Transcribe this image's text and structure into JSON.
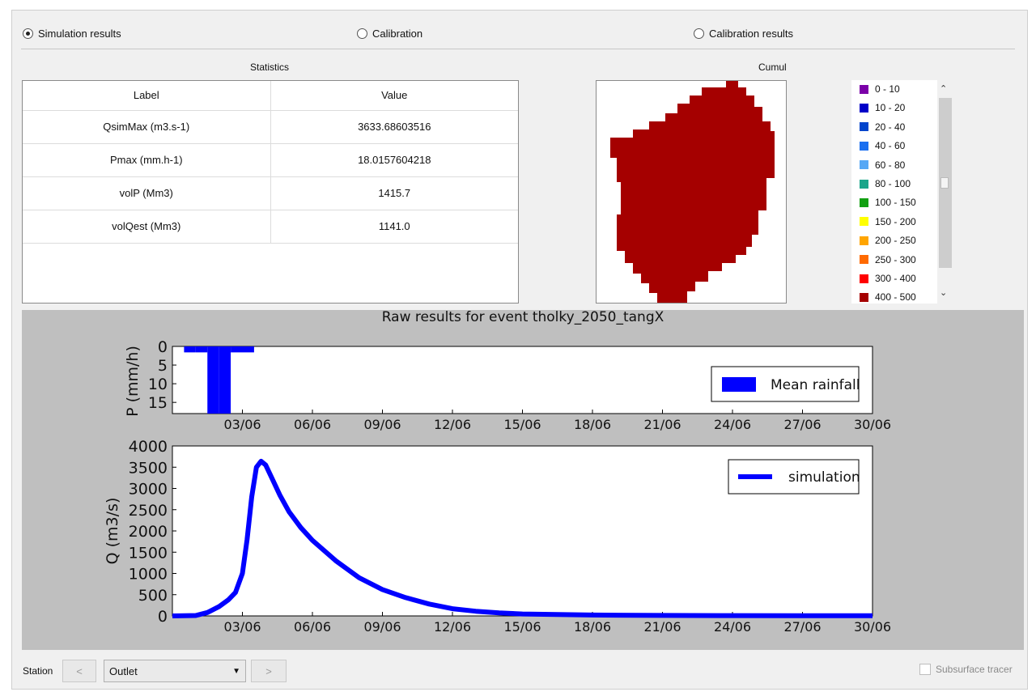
{
  "radios": [
    {
      "label": "Simulation results",
      "checked": true
    },
    {
      "label": "Calibration",
      "checked": false
    },
    {
      "label": "Calibration results",
      "checked": false
    }
  ],
  "statistics": {
    "title": "Statistics",
    "headers": [
      "Label",
      "Value"
    ],
    "rows": [
      [
        "QsimMax (m3.s-1)",
        "3633.68603516"
      ],
      [
        "Pmax (mm.h-1)",
        "18.0157604218"
      ],
      [
        "volP (Mm3)",
        "1415.7"
      ],
      [
        "volQest (Mm3)",
        "1141.0"
      ]
    ]
  },
  "map": {
    "title": "Cumul",
    "fill_color": "#a50000"
  },
  "legend": [
    {
      "label": "0 - 10",
      "color": "#7b00a8"
    },
    {
      "label": "10 - 20",
      "color": "#0000c8"
    },
    {
      "label": "20 - 40",
      "color": "#0044cc"
    },
    {
      "label": "40 - 60",
      "color": "#1a6ff0"
    },
    {
      "label": "60 - 80",
      "color": "#56a8f5"
    },
    {
      "label": "80 - 100",
      "color": "#1aa58a"
    },
    {
      "label": "100 - 150",
      "color": "#12a012"
    },
    {
      "label": "150 - 200",
      "color": "#ffff00"
    },
    {
      "label": "200 - 250",
      "color": "#ffa500"
    },
    {
      "label": "250 - 300",
      "color": "#ff6a00"
    },
    {
      "label": "300 - 400",
      "color": "#ff0000"
    },
    {
      "label": "400 - 500",
      "color": "#a50000"
    }
  ],
  "chart_data": [
    {
      "type": "bar",
      "title": "Raw results for event tholky_2050_tangX",
      "ylabel": "P (mm/h)",
      "ylim": [
        0,
        18
      ],
      "y_inverted": true,
      "yticks": [
        "0",
        "5",
        "10",
        "15"
      ],
      "xticks": [
        "03/06",
        "06/06",
        "09/06",
        "12/06",
        "15/06",
        "18/06",
        "21/06",
        "24/06",
        "27/06",
        "30/06"
      ],
      "series": [
        {
          "name": "Mean rainfall",
          "color": "#0000ff",
          "x": [
            0.5,
            1.0,
            1.5,
            2.0,
            2.5,
            3.0
          ],
          "values": [
            1.6,
            1.6,
            18.0,
            18.0,
            1.6,
            1.6
          ]
        }
      ],
      "legend": "right"
    },
    {
      "type": "line",
      "ylabel": "Q (m3/s)",
      "ylim": [
        0,
        4000
      ],
      "yticks": [
        "0",
        "500",
        "1000",
        "1500",
        "2000",
        "2500",
        "3000",
        "3500",
        "4000"
      ],
      "xticks": [
        "03/06",
        "06/06",
        "09/06",
        "12/06",
        "15/06",
        "18/06",
        "21/06",
        "24/06",
        "27/06",
        "30/06"
      ],
      "series": [
        {
          "name": "simulation",
          "color": "#0000ff",
          "x": [
            0,
            1,
            1.5,
            2,
            2.4,
            2.7,
            3.0,
            3.2,
            3.4,
            3.6,
            3.8,
            4.0,
            4.3,
            4.6,
            5,
            5.5,
            6,
            7,
            8,
            9,
            10,
            11,
            12,
            13,
            14,
            15,
            18,
            21,
            24,
            27,
            30
          ],
          "values": [
            0,
            10,
            80,
            220,
            380,
            550,
            1000,
            1800,
            2800,
            3500,
            3640,
            3550,
            3200,
            2850,
            2450,
            2080,
            1780,
            1300,
            900,
            620,
            430,
            280,
            170,
            110,
            70,
            45,
            20,
            12,
            8,
            5,
            3
          ]
        }
      ],
      "legend": "upper right"
    }
  ],
  "bottom": {
    "station_label": "Station",
    "prev_label": "<",
    "next_label": ">",
    "station_value": "Outlet",
    "subsurface_label": "Subsurface tracer"
  }
}
